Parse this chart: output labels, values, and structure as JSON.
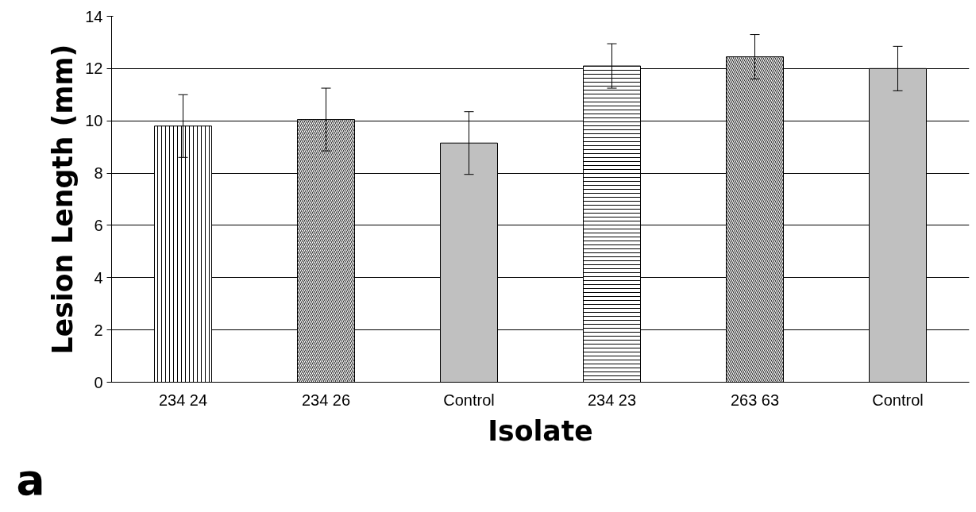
{
  "chart_data": {
    "type": "bar",
    "xlabel": "Isolate",
    "ylabel": "Lesion Length (mm)",
    "categories": [
      "234 24",
      "234 26",
      "Control",
      "234 23",
      "263 63",
      "Control"
    ],
    "values": [
      9.8,
      10.05,
      9.15,
      12.1,
      12.45,
      12.0
    ],
    "errors": [
      1.2,
      1.2,
      1.2,
      0.85,
      0.85,
      0.85
    ],
    "colors": [
      "#ffffff",
      "#ffffff",
      "#c0c0c0",
      "#ffffff",
      "#ffffff",
      "#c0c0c0"
    ],
    "ylim": [
      0,
      14
    ],
    "yticks": [
      0,
      2,
      4,
      6,
      8,
      10,
      12,
      14
    ],
    "grid": "y",
    "annotations": [
      "a"
    ]
  }
}
